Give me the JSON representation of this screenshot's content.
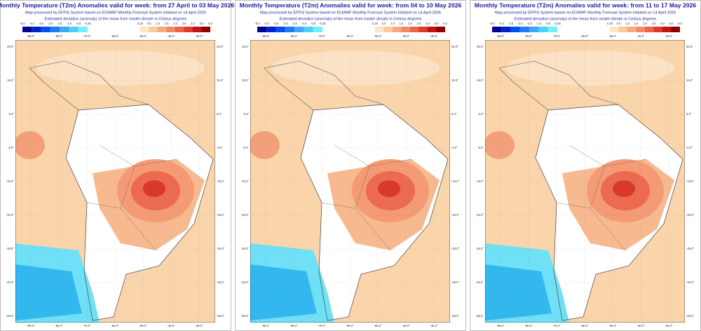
{
  "panels": [
    {
      "title": "Monthly Temperature (T2m) Anomalies valid for week: from 27 April to 03 May 2026",
      "subtitle": "Map processed by EFFIS System based on ECMWF Monthly Forecast System initiated on 14 April 2026",
      "note": "Estimated deviation (anomaly) of the mean from model climate in Celsius degrees"
    },
    {
      "title": "Monthly Temperature (T2m) Anomalies valid for week: from 04 to 10 May 2026",
      "subtitle": "Map processed by EFFIS System based on ECMWF Monthly Forecast System initiated on 14 April 2026",
      "note": "Estimated deviation (anomaly) of the mean from model climate in Celsius degrees"
    },
    {
      "title": "Monthly Temperature (T2m) Anomalies valid for week: from 11 to 17 May 2026",
      "subtitle": "Map processed by EFFIS System based on ECMWF Monthly Forecast System initiated on 14 April 2026",
      "note": "Estimated deviation (anomaly) of the mean from model climate in Celsius degrees"
    }
  ],
  "colorbar": {
    "cold": [
      "-6.0",
      "-4.0",
      "-3.0",
      "-2.0",
      "-1.5",
      "-1.0",
      "-0.5",
      "-0.25"
    ],
    "warm": [
      "0.25",
      "0.5",
      "1.0",
      "1.5",
      "2.0",
      "3.0",
      "4.0",
      "5.0",
      "6.0"
    ]
  },
  "lat_labels": [
    "25.0°",
    "15.0°",
    "5.0°",
    "-5.0°",
    "-15.0°",
    "-25.0°",
    "-35.0°",
    "-45.0°",
    "-55.0°"
  ],
  "lon_labels": [
    "-95.0°",
    "-85.0°",
    "-75.0°",
    "-65.0°",
    "-55.0°",
    "-45.0°",
    "-35.0°"
  ]
}
